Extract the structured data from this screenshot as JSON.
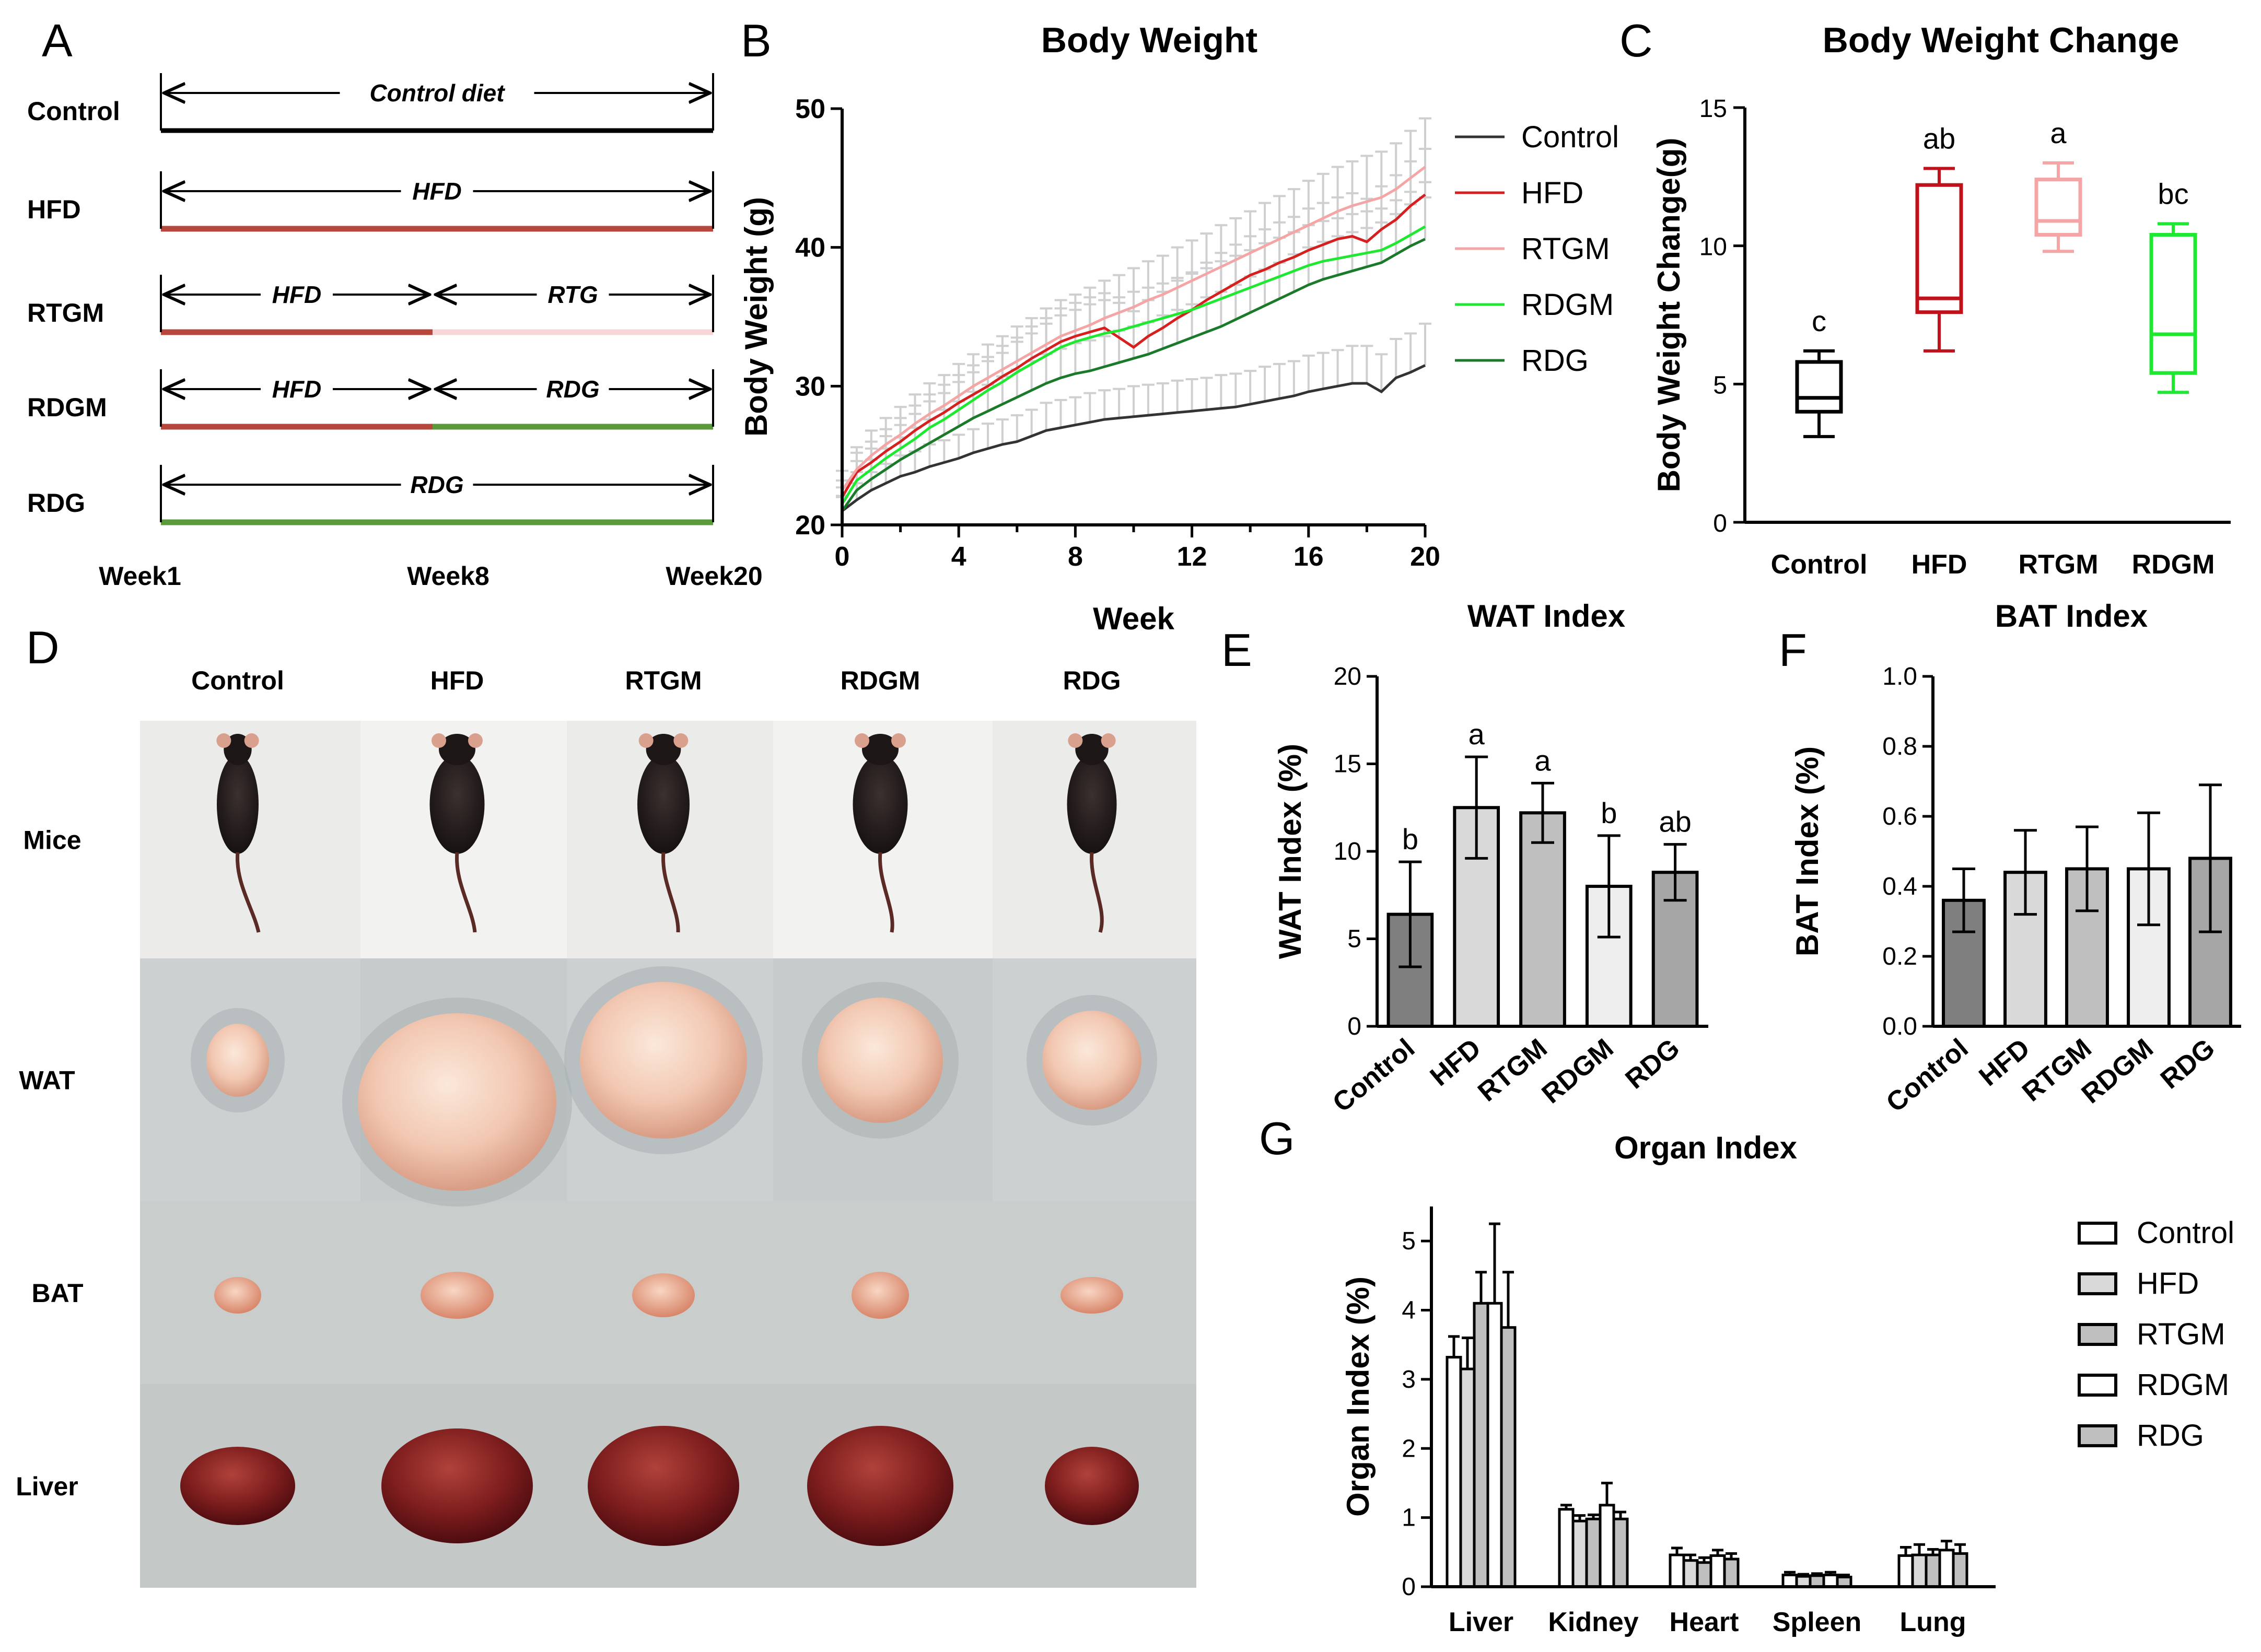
{
  "panels": {
    "A": "A",
    "B": "B",
    "C": "C",
    "D": "D",
    "E": "E",
    "F": "F",
    "G": "G"
  },
  "colors": {
    "control": "#333333",
    "hfd": "#d62020",
    "rtgm": "#f4a5a5",
    "rdgm": "#1ee830",
    "rdg": "#1a7a2a",
    "bar_control": "#7f7f7f",
    "bar_hfd": "#d9d9d9",
    "bar_rtgm": "#bfbfbf",
    "bar_rdgm": "#eeeeee",
    "bar_rdg": "#a6a6a6",
    "timeline_hfd": "#b5473d",
    "timeline_rtg": "#f6d6d6",
    "timeline_rdg": "#5a9a3a"
  },
  "panelA": {
    "rows": [
      {
        "label": "Control",
        "segments": [
          {
            "text": "Control diet",
            "color": "#000000"
          }
        ]
      },
      {
        "label": "HFD",
        "segments": [
          {
            "text": "HFD",
            "color": "#b5473d"
          }
        ]
      },
      {
        "label": "RTGM",
        "segments": [
          {
            "text": "HFD",
            "color": "#b5473d"
          },
          {
            "text": "RTG",
            "color": "#f6d6d6"
          }
        ]
      },
      {
        "label": "RDGM",
        "segments": [
          {
            "text": "HFD",
            "color": "#b5473d"
          },
          {
            "text": "RDG",
            "color": "#5a9a3a"
          }
        ]
      },
      {
        "label": "RDG",
        "segments": [
          {
            "text": "RDG",
            "color": "#5a9a3a"
          }
        ]
      }
    ],
    "weeks": [
      "Week1",
      "Week8",
      "Week20"
    ]
  },
  "photo": {
    "columns": [
      "Control",
      "HFD",
      "RTGM",
      "RDGM",
      "RDG"
    ],
    "rows": [
      "Mice",
      "WAT",
      "BAT",
      "Liver"
    ]
  },
  "chart_data": [
    {
      "id": "B",
      "type": "line",
      "title": "Body Weight",
      "xlabel": "Week",
      "ylabel": "Body Weight (g)",
      "xlim": [
        0,
        20
      ],
      "ylim": [
        20,
        50
      ],
      "xticks": [
        0,
        4,
        8,
        12,
        16,
        20
      ],
      "yticks": [
        20,
        30,
        40,
        50
      ],
      "x": [
        0,
        0.5,
        1,
        1.5,
        2,
        2.5,
        3,
        3.5,
        4,
        4.5,
        5,
        5.5,
        6,
        6.5,
        7,
        7.5,
        8,
        8.5,
        9,
        9.5,
        10,
        10.5,
        11,
        11.5,
        12,
        12.5,
        13,
        13.5,
        14,
        14.5,
        15,
        15.5,
        16,
        16.5,
        17,
        17.5,
        18,
        18.5,
        19,
        19.5,
        20
      ],
      "series": [
        {
          "name": "Control",
          "color": "#333333",
          "values": [
            21.0,
            21.8,
            22.5,
            23.0,
            23.5,
            23.8,
            24.2,
            24.5,
            24.8,
            25.2,
            25.5,
            25.8,
            26.0,
            26.4,
            26.8,
            27.0,
            27.2,
            27.4,
            27.6,
            27.7,
            27.8,
            27.9,
            28.0,
            28.1,
            28.2,
            28.3,
            28.4,
            28.5,
            28.7,
            28.9,
            29.1,
            29.3,
            29.6,
            29.8,
            30.0,
            30.2,
            30.2,
            29.6,
            30.6,
            31.0,
            31.5
          ],
          "err": [
            1.0,
            1.2,
            1.3,
            1.4,
            1.5,
            1.5,
            1.6,
            1.6,
            1.7,
            1.7,
            1.8,
            1.8,
            1.9,
            1.9,
            2.0,
            2.0,
            2.0,
            2.1,
            2.1,
            2.1,
            2.2,
            2.2,
            2.2,
            2.3,
            2.3,
            2.3,
            2.4,
            2.4,
            2.4,
            2.5,
            2.5,
            2.5,
            2.6,
            2.6,
            2.6,
            2.7,
            2.7,
            2.7,
            2.8,
            2.8,
            3.0
          ]
        },
        {
          "name": "HFD",
          "color": "#d62020",
          "values": [
            22.0,
            23.8,
            24.5,
            25.3,
            26.0,
            26.8,
            27.5,
            28.1,
            28.8,
            29.4,
            30.0,
            30.7,
            31.3,
            32.0,
            32.6,
            33.2,
            33.6,
            33.9,
            34.2,
            33.5,
            32.8,
            33.6,
            34.2,
            34.9,
            35.5,
            36.2,
            36.8,
            37.4,
            38.0,
            38.4,
            38.9,
            39.3,
            39.8,
            40.2,
            40.6,
            40.8,
            40.4,
            41.3,
            42.0,
            43.0,
            43.8
          ],
          "err": [
            1.2,
            1.4,
            1.5,
            1.6,
            1.7,
            1.8,
            1.9,
            2.0,
            2.0,
            2.1,
            2.1,
            2.2,
            2.2,
            2.3,
            2.3,
            2.4,
            2.4,
            2.5,
            2.5,
            2.5,
            2.6,
            2.6,
            2.6,
            2.7,
            2.7,
            2.7,
            2.8,
            2.8,
            2.8,
            2.9,
            2.9,
            2.9,
            3.0,
            3.0,
            3.0,
            3.1,
            3.1,
            3.1,
            3.2,
            3.2,
            3.3
          ]
        },
        {
          "name": "RTGM",
          "color": "#f4a5a5",
          "values": [
            22.5,
            24.0,
            25.0,
            25.8,
            26.5,
            27.3,
            28.0,
            28.6,
            29.3,
            30.0,
            30.6,
            31.2,
            31.8,
            32.4,
            33.0,
            33.6,
            34.0,
            34.4,
            34.9,
            35.3,
            35.7,
            36.2,
            36.6,
            37.1,
            37.6,
            38.1,
            38.6,
            39.1,
            39.6,
            40.1,
            40.6,
            41.1,
            41.6,
            42.1,
            42.6,
            43.0,
            43.3,
            43.6,
            44.2,
            45.0,
            45.8
          ],
          "err": [
            1.4,
            1.6,
            1.8,
            1.9,
            2.0,
            2.1,
            2.2,
            2.2,
            2.3,
            2.3,
            2.4,
            2.4,
            2.5,
            2.5,
            2.6,
            2.6,
            2.6,
            2.7,
            2.7,
            2.7,
            2.8,
            2.8,
            2.8,
            2.9,
            2.9,
            2.9,
            3.0,
            3.0,
            3.0,
            3.1,
            3.1,
            3.1,
            3.2,
            3.2,
            3.2,
            3.2,
            3.3,
            3.3,
            3.3,
            3.4,
            3.5
          ]
        },
        {
          "name": "RDGM",
          "color": "#1ee830",
          "values": [
            21.5,
            23.2,
            24.0,
            24.8,
            25.5,
            26.2,
            27.0,
            27.6,
            28.3,
            29.0,
            29.7,
            30.3,
            31.0,
            31.6,
            32.2,
            32.8,
            33.2,
            33.5,
            33.8,
            34.0,
            34.3,
            34.6,
            34.9,
            35.2,
            35.5,
            35.9,
            36.3,
            36.7,
            37.1,
            37.5,
            37.9,
            38.3,
            38.7,
            39.0,
            39.2,
            39.4,
            39.6,
            39.8,
            40.3,
            40.9,
            41.5
          ],
          "err": [
            1.2,
            1.4,
            1.5,
            1.6,
            1.7,
            1.8,
            1.9,
            1.9,
            2.0,
            2.0,
            2.1,
            2.1,
            2.2,
            2.2,
            2.3,
            2.3,
            2.3,
            2.4,
            2.4,
            2.4,
            2.5,
            2.5,
            2.5,
            2.6,
            2.6,
            2.6,
            2.7,
            2.7,
            2.7,
            2.8,
            2.8,
            2.8,
            2.9,
            2.9,
            2.9,
            3.0,
            3.0,
            3.0,
            3.1,
            3.1,
            3.2
          ]
        },
        {
          "name": "RDG",
          "color": "#1a7a2a",
          "values": [
            21.0,
            22.5,
            23.3,
            24.0,
            24.7,
            25.3,
            25.9,
            26.5,
            27.1,
            27.7,
            28.2,
            28.7,
            29.2,
            29.7,
            30.2,
            30.6,
            30.9,
            31.1,
            31.4,
            31.7,
            32.0,
            32.3,
            32.7,
            33.1,
            33.5,
            33.9,
            34.3,
            34.8,
            35.3,
            35.8,
            36.3,
            36.8,
            37.3,
            37.7,
            38.0,
            38.3,
            38.6,
            38.9,
            39.5,
            40.1,
            40.6
          ],
          "err": [
            1.1,
            1.3,
            1.4,
            1.5,
            1.6,
            1.7,
            1.7,
            1.8,
            1.8,
            1.9,
            1.9,
            2.0,
            2.0,
            2.1,
            2.1,
            2.1,
            2.2,
            2.2,
            2.2,
            2.3,
            2.3,
            2.3,
            2.4,
            2.4,
            2.4,
            2.5,
            2.5,
            2.5,
            2.6,
            2.6,
            2.6,
            2.7,
            2.7,
            2.7,
            2.8,
            2.8,
            2.8,
            2.9,
            2.9,
            3.0,
            3.0
          ]
        }
      ]
    },
    {
      "id": "C",
      "type": "box",
      "title": "Body Weight Change",
      "xlabel": "",
      "ylabel": "Body Weight Change(g)",
      "ylim": [
        0,
        15
      ],
      "yticks": [
        0,
        5,
        10,
        15
      ],
      "categories": [
        "Control",
        "HFD",
        "RTGM",
        "RDGM"
      ],
      "series": [
        {
          "name": "Control",
          "color": "#000000",
          "min": 3.1,
          "q1": 4.0,
          "median": 4.5,
          "q3": 5.8,
          "max": 6.2,
          "letter": "c"
        },
        {
          "name": "HFD",
          "color": "#c0121a",
          "min": 6.2,
          "q1": 7.6,
          "median": 8.1,
          "q3": 12.2,
          "max": 12.8,
          "letter": "ab"
        },
        {
          "name": "RTGM",
          "color": "#f4a5a5",
          "min": 9.8,
          "q1": 10.4,
          "median": 10.9,
          "q3": 12.4,
          "max": 13.0,
          "letter": "a"
        },
        {
          "name": "RDGM",
          "color": "#1ee830",
          "min": 4.7,
          "q1": 5.4,
          "median": 6.8,
          "q3": 10.4,
          "max": 10.8,
          "letter": "bc"
        }
      ]
    },
    {
      "id": "E",
      "type": "bar",
      "title": "WAT Index",
      "xlabel": "",
      "ylabel": "WAT Index (%)",
      "ylim": [
        0,
        20
      ],
      "yticks": [
        0,
        5,
        10,
        15,
        20
      ],
      "categories": [
        "Control",
        "HFD",
        "RTGM",
        "RDGM",
        "RDG"
      ],
      "values": [
        6.4,
        12.5,
        12.2,
        8.0,
        8.8
      ],
      "err": [
        3.0,
        2.9,
        1.7,
        2.9,
        1.6
      ],
      "letters": [
        "b",
        "a",
        "a",
        "b",
        "ab"
      ],
      "bar_colors": [
        "#7f7f7f",
        "#d9d9d9",
        "#bfbfbf",
        "#eeeeee",
        "#a6a6a6"
      ]
    },
    {
      "id": "F",
      "type": "bar",
      "title": "BAT Index",
      "xlabel": "",
      "ylabel": "BAT Index (%)",
      "ylim": [
        0,
        1.0
      ],
      "yticks": [
        0.0,
        0.2,
        0.4,
        0.6,
        0.8,
        1.0
      ],
      "categories": [
        "Control",
        "HFD",
        "RTGM",
        "RDGM",
        "RDG"
      ],
      "values": [
        0.36,
        0.44,
        0.45,
        0.45,
        0.48
      ],
      "err": [
        0.09,
        0.12,
        0.12,
        0.16,
        0.21
      ],
      "bar_colors": [
        "#7f7f7f",
        "#d9d9d9",
        "#bfbfbf",
        "#eeeeee",
        "#a6a6a6"
      ]
    },
    {
      "id": "G",
      "type": "bar",
      "title": "Organ Index",
      "xlabel": "",
      "ylabel": "Organ Index (%)",
      "ylim": [
        0,
        5.5
      ],
      "yticks": [
        0,
        1,
        2,
        3,
        4,
        5
      ],
      "categories": [
        "Liver",
        "Kidney",
        "Heart",
        "Spleen",
        "Lung"
      ],
      "legend_position": "right",
      "series": [
        {
          "name": "Control",
          "color": "#ffffff",
          "values": [
            3.32,
            1.12,
            0.46,
            0.17,
            0.45
          ],
          "err": [
            0.3,
            0.06,
            0.1,
            0.04,
            0.12
          ]
        },
        {
          "name": "HFD",
          "color": "#d9d9d9",
          "values": [
            3.15,
            0.95,
            0.38,
            0.15,
            0.46
          ],
          "err": [
            0.45,
            0.08,
            0.08,
            0.03,
            0.15
          ]
        },
        {
          "name": "RTGM",
          "color": "#bfbfbf",
          "values": [
            4.1,
            0.98,
            0.35,
            0.16,
            0.46
          ],
          "err": [
            0.45,
            0.06,
            0.07,
            0.03,
            0.08
          ]
        },
        {
          "name": "RDGM",
          "color": "#ffffff",
          "values": [
            4.1,
            1.18,
            0.45,
            0.17,
            0.53
          ],
          "err": [
            1.15,
            0.32,
            0.08,
            0.04,
            0.13
          ]
        },
        {
          "name": "RDG",
          "color": "#bfbfbf",
          "values": [
            3.75,
            0.98,
            0.4,
            0.14,
            0.48
          ],
          "err": [
            0.8,
            0.1,
            0.08,
            0.03,
            0.13
          ]
        }
      ]
    }
  ]
}
